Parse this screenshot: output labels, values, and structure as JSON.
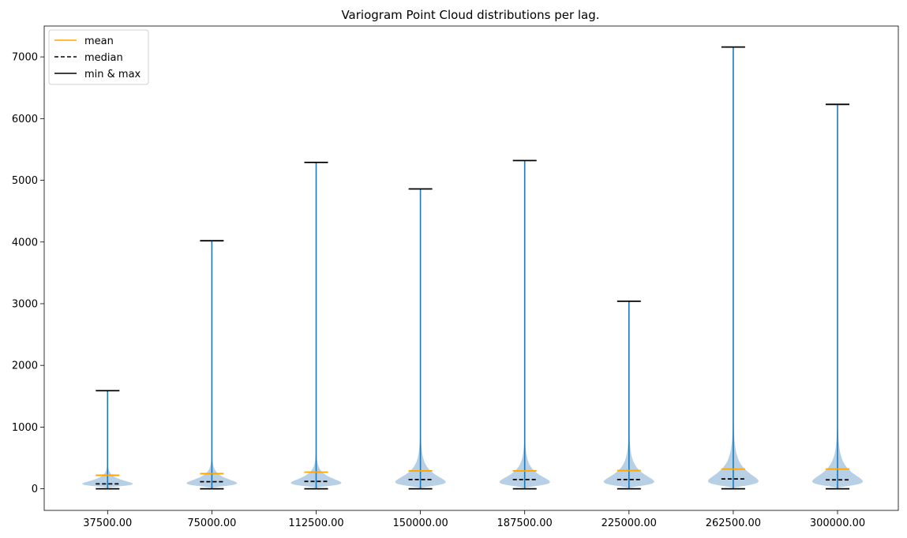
{
  "chart_data": {
    "type": "violin",
    "title": "Variogram Point Cloud distributions per lag.",
    "xlabel": "",
    "ylabel": "",
    "categories": [
      "37500.00",
      "75000.00",
      "112500.00",
      "150000.00",
      "187500.00",
      "225000.00",
      "262500.00",
      "300000.00"
    ],
    "ylim": [
      -350,
      7500
    ],
    "yticks": [
      0,
      1000,
      2000,
      3000,
      4000,
      5000,
      6000,
      7000
    ],
    "grid": false,
    "legend": {
      "placement": "top-left",
      "entries": [
        {
          "key": "mean",
          "label": "mean",
          "color": "#ffa500",
          "style": "solid"
        },
        {
          "key": "median",
          "label": "median",
          "color": "#000000",
          "style": "dashed"
        },
        {
          "key": "minmax",
          "label": "min & max",
          "color": "#000000",
          "style": "solid"
        }
      ]
    },
    "colors": {
      "violin_fill": "#b7d0e5",
      "center_line": "#1f77b4",
      "mean": "#ffa500",
      "median": "#000000",
      "minmax": "#000000"
    },
    "series": [
      {
        "name": "37500.00",
        "min": 0,
        "max": 1590,
        "mean": 220,
        "median": 80,
        "peak": 80,
        "spread": 0.55
      },
      {
        "name": "75000.00",
        "min": 0,
        "max": 4020,
        "mean": 245,
        "median": 115,
        "peak": 90,
        "spread": 0.6
      },
      {
        "name": "112500.00",
        "min": 0,
        "max": 5290,
        "mean": 270,
        "median": 120,
        "peak": 95,
        "spread": 0.62
      },
      {
        "name": "150000.00",
        "min": 0,
        "max": 4860,
        "mean": 290,
        "median": 150,
        "peak": 110,
        "spread": 0.72
      },
      {
        "name": "187500.00",
        "min": 0,
        "max": 5320,
        "mean": 290,
        "median": 150,
        "peak": 110,
        "spread": 0.7
      },
      {
        "name": "225000.00",
        "min": 0,
        "max": 3040,
        "mean": 295,
        "median": 150,
        "peak": 115,
        "spread": 0.72
      },
      {
        "name": "262500.00",
        "min": 0,
        "max": 7160,
        "mean": 320,
        "median": 160,
        "peak": 125,
        "spread": 0.75
      },
      {
        "name": "300000.00",
        "min": 0,
        "max": 6230,
        "mean": 320,
        "median": 145,
        "peak": 120,
        "spread": 0.75
      }
    ]
  }
}
